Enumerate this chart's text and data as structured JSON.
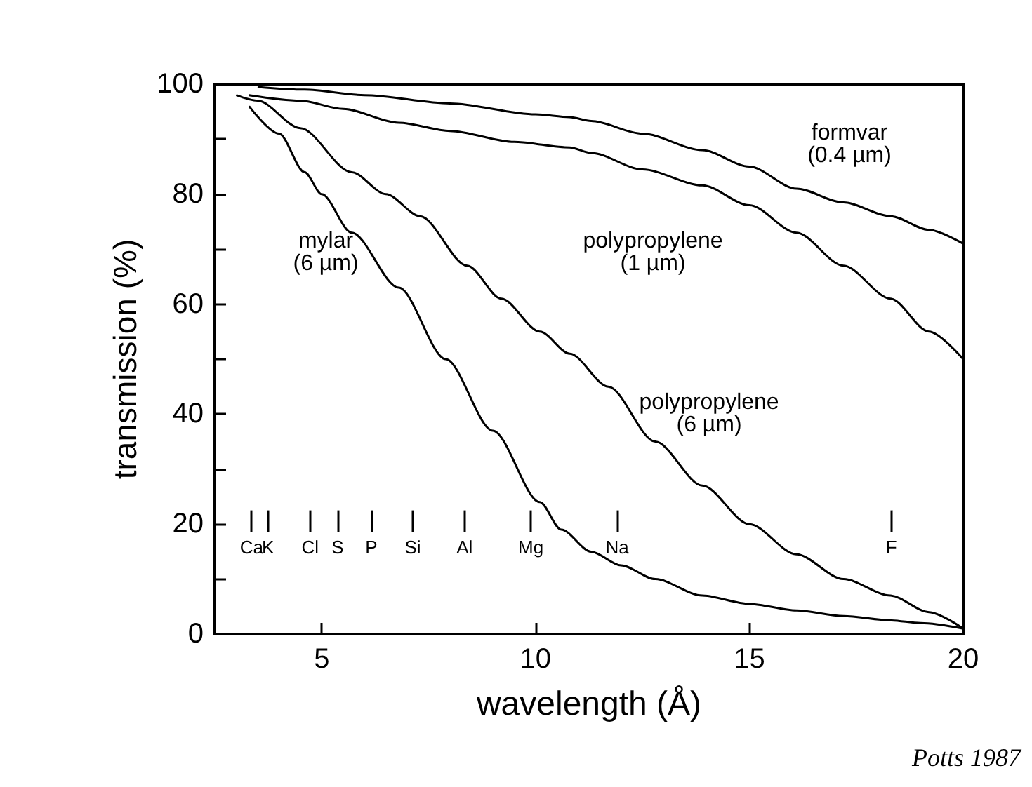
{
  "chart_data": {
    "type": "line",
    "xlabel": "wavelength (Å)",
    "ylabel": "transmission (%)",
    "xlim": [
      2.5,
      20
    ],
    "ylim": [
      0,
      100
    ],
    "xticks": [
      5,
      10,
      15,
      20
    ],
    "yticks": [
      0,
      {
        "value": 10,
        "label": null
      },
      20,
      {
        "value": 30,
        "label": null
      },
      40,
      {
        "value": 50,
        "label": null
      },
      60,
      {
        "value": 70,
        "label": null
      },
      80,
      {
        "value": 90,
        "label": null
      },
      100
    ],
    "grid": false,
    "marker": "none",
    "line_style": "solid",
    "series": [
      {
        "name": "formvar\n(0.4 µm)",
        "color": "#000000",
        "x": [
          3.5,
          4.6,
          6,
          8,
          10,
          10.8,
          11.3,
          12.5,
          13.9,
          15,
          16.1,
          17.2,
          18.3,
          19.2,
          20
        ],
        "values": [
          99.5,
          99,
          98,
          96.5,
          94.5,
          94,
          93.3,
          91,
          88,
          85,
          81,
          78.5,
          76,
          73.5,
          71
        ]
      },
      {
        "name": "polypropylene\n(1 µm)",
        "color": "#000000",
        "x": [
          3.3,
          4.5,
          5.5,
          6.8,
          8,
          9.5,
          10.8,
          11.3,
          12.5,
          13.9,
          15,
          16.1,
          17.2,
          18.3,
          19.2,
          20
        ],
        "values": [
          98,
          97,
          95.5,
          93,
          91.5,
          89.5,
          88.5,
          87.5,
          84.5,
          81.6,
          78,
          73,
          67,
          61,
          55,
          50
        ]
      },
      {
        "name": "polypropylene\n(6 µm)",
        "color": "#000000",
        "x": [
          3,
          3.5,
          4.5,
          5.7,
          6.5,
          7.3,
          8.4,
          9.2,
          10.1,
          10.8,
          11.7,
          12.8,
          13.9,
          15,
          16.1,
          17.2,
          18.3,
          19.2,
          20
        ],
        "values": [
          98,
          97,
          92,
          84,
          80,
          76,
          67,
          61,
          55,
          51,
          45,
          35,
          27,
          20,
          14.5,
          10,
          7,
          4,
          1
        ]
      },
      {
        "name": "mylar\n(6 µm)",
        "color": "#000000",
        "x": [
          3.3,
          4,
          4.6,
          5,
          5.7,
          6.8,
          7.9,
          9,
          10.1,
          10.6,
          11.3,
          12,
          12.8,
          13.9,
          15,
          16.1,
          17.2,
          18.3,
          19,
          20
        ],
        "values": [
          96,
          91,
          84,
          80,
          73,
          63,
          50,
          37,
          24,
          19,
          15,
          12.5,
          10,
          7,
          5.5,
          4.3,
          3.3,
          2.5,
          2,
          1
        ]
      }
    ],
    "ref_lines": [
      {
        "axis": "x",
        "value": 3.36,
        "label": "Ca"
      },
      {
        "axis": "x",
        "value": 3.74,
        "label": "K"
      },
      {
        "axis": "x",
        "value": 4.73,
        "label": "Cl"
      },
      {
        "axis": "x",
        "value": 5.37,
        "label": "S"
      },
      {
        "axis": "x",
        "value": 6.16,
        "label": "P"
      },
      {
        "axis": "x",
        "value": 7.13,
        "label": "Si"
      },
      {
        "axis": "x",
        "value": 8.34,
        "label": "Al"
      },
      {
        "axis": "x",
        "value": 9.89,
        "label": "Mg"
      },
      {
        "axis": "x",
        "value": 11.91,
        "label": "Na"
      },
      {
        "axis": "x",
        "value": 18.32,
        "label": "F"
      }
    ],
    "annotations": [
      "Potts 1987"
    ]
  }
}
